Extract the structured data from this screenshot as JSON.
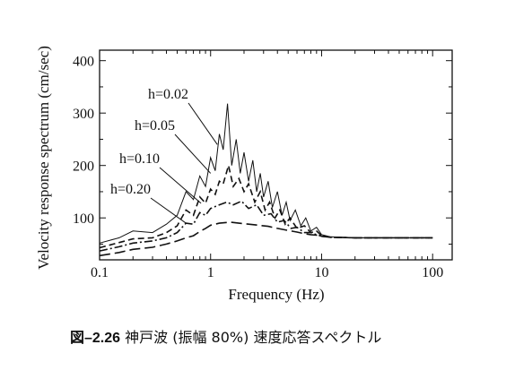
{
  "caption": {
    "number": "図–2.26",
    "text": "神戸波 (振幅 80%) 速度応答スペクトル"
  },
  "chart_data": {
    "type": "line",
    "title": "",
    "xlabel": "Frequency (Hz)",
    "ylabel": "Velocity response spectrum (cm/sec)",
    "xscale": "log",
    "xlim": [
      0.1,
      150
    ],
    "ylim": [
      20,
      420
    ],
    "xticks": [
      0.1,
      1,
      10,
      100
    ],
    "xtick_labels": [
      "0.1",
      "1",
      "10",
      "100"
    ],
    "yticks": [
      100,
      200,
      300,
      400
    ],
    "ytick_labels": [
      "100",
      "200",
      "300",
      "400"
    ],
    "grid": false,
    "legend": "none",
    "series": [
      {
        "name": "h=0.02",
        "dash": "solid",
        "points": [
          [
            0.1,
            52
          ],
          [
            0.15,
            62
          ],
          [
            0.2,
            75
          ],
          [
            0.3,
            72
          ],
          [
            0.4,
            88
          ],
          [
            0.5,
            105
          ],
          [
            0.6,
            150
          ],
          [
            0.7,
            135
          ],
          [
            0.8,
            180
          ],
          [
            0.9,
            160
          ],
          [
            1.0,
            215
          ],
          [
            1.1,
            190
          ],
          [
            1.2,
            260
          ],
          [
            1.3,
            230
          ],
          [
            1.42,
            318
          ],
          [
            1.55,
            200
          ],
          [
            1.7,
            250
          ],
          [
            1.85,
            185
          ],
          [
            2.0,
            225
          ],
          [
            2.2,
            170
          ],
          [
            2.4,
            210
          ],
          [
            2.6,
            150
          ],
          [
            2.8,
            185
          ],
          [
            3.0,
            140
          ],
          [
            3.3,
            170
          ],
          [
            3.6,
            120
          ],
          [
            4.0,
            150
          ],
          [
            4.4,
            105
          ],
          [
            4.8,
            130
          ],
          [
            5.2,
            95
          ],
          [
            5.8,
            115
          ],
          [
            6.5,
            85
          ],
          [
            7.2,
            100
          ],
          [
            8.0,
            75
          ],
          [
            9.0,
            82
          ],
          [
            10,
            68
          ],
          [
            12,
            64
          ],
          [
            20,
            62
          ],
          [
            50,
            62
          ],
          [
            100,
            62
          ]
        ]
      },
      {
        "name": "h=0.05",
        "dash": "dashed",
        "points": [
          [
            0.1,
            43
          ],
          [
            0.15,
            53
          ],
          [
            0.2,
            60
          ],
          [
            0.3,
            62
          ],
          [
            0.4,
            72
          ],
          [
            0.5,
            85
          ],
          [
            0.6,
            115
          ],
          [
            0.7,
            105
          ],
          [
            0.8,
            140
          ],
          [
            0.9,
            128
          ],
          [
            1.0,
            155
          ],
          [
            1.1,
            145
          ],
          [
            1.2,
            170
          ],
          [
            1.3,
            165
          ],
          [
            1.45,
            200
          ],
          [
            1.6,
            160
          ],
          [
            1.8,
            175
          ],
          [
            2.0,
            150
          ],
          [
            2.2,
            165
          ],
          [
            2.5,
            130
          ],
          [
            2.8,
            150
          ],
          [
            3.1,
            115
          ],
          [
            3.4,
            130
          ],
          [
            3.8,
            100
          ],
          [
            4.2,
            115
          ],
          [
            4.7,
            88
          ],
          [
            5.2,
            100
          ],
          [
            6.0,
            80
          ],
          [
            7.0,
            85
          ],
          [
            8.0,
            72
          ],
          [
            9.0,
            75
          ],
          [
            10,
            66
          ],
          [
            12,
            63
          ],
          [
            20,
            62
          ],
          [
            50,
            62
          ],
          [
            100,
            62
          ]
        ]
      },
      {
        "name": "h=0.10",
        "dash": "dashdot",
        "points": [
          [
            0.1,
            37
          ],
          [
            0.15,
            45
          ],
          [
            0.2,
            52
          ],
          [
            0.3,
            56
          ],
          [
            0.4,
            62
          ],
          [
            0.5,
            72
          ],
          [
            0.6,
            90
          ],
          [
            0.7,
            88
          ],
          [
            0.8,
            110
          ],
          [
            0.9,
            105
          ],
          [
            1.0,
            118
          ],
          [
            1.2,
            125
          ],
          [
            1.4,
            130
          ],
          [
            1.6,
            125
          ],
          [
            1.9,
            132
          ],
          [
            2.2,
            118
          ],
          [
            2.6,
            125
          ],
          [
            3.0,
            105
          ],
          [
            3.5,
            108
          ],
          [
            4.0,
            92
          ],
          [
            4.6,
            95
          ],
          [
            5.3,
            80
          ],
          [
            6.0,
            82
          ],
          [
            7.0,
            72
          ],
          [
            8.0,
            72
          ],
          [
            9.0,
            68
          ],
          [
            10,
            65
          ],
          [
            12,
            63
          ],
          [
            20,
            62
          ],
          [
            50,
            62
          ],
          [
            100,
            62
          ]
        ]
      },
      {
        "name": "h=0.20",
        "dash": "longdash",
        "points": [
          [
            0.1,
            28
          ],
          [
            0.15,
            34
          ],
          [
            0.2,
            40
          ],
          [
            0.3,
            44
          ],
          [
            0.4,
            50
          ],
          [
            0.5,
            56
          ],
          [
            0.6,
            62
          ],
          [
            0.7,
            66
          ],
          [
            0.8,
            74
          ],
          [
            0.9,
            80
          ],
          [
            1.0,
            86
          ],
          [
            1.2,
            90
          ],
          [
            1.5,
            92
          ],
          [
            1.8,
            90
          ],
          [
            2.2,
            88
          ],
          [
            2.7,
            86
          ],
          [
            3.3,
            84
          ],
          [
            4.0,
            80
          ],
          [
            5.0,
            76
          ],
          [
            6.0,
            73
          ],
          [
            7.0,
            70
          ],
          [
            8.0,
            68
          ],
          [
            9.0,
            67
          ],
          [
            10,
            65
          ],
          [
            12,
            63
          ],
          [
            20,
            62
          ],
          [
            50,
            62
          ],
          [
            100,
            62
          ]
        ]
      }
    ],
    "annotations": [
      {
        "text": "h=0.02",
        "series": "h=0.02",
        "arrow_to": [
          1.15,
          240
        ]
      },
      {
        "text": "h=0.05",
        "series": "h=0.05",
        "arrow_to": [
          1.0,
          185
        ]
      },
      {
        "text": "h=0.10",
        "series": "h=0.10",
        "arrow_to": [
          0.82,
          128
        ]
      },
      {
        "text": "h=0.20",
        "series": "h=0.20",
        "arrow_to": [
          0.6,
          90
        ]
      }
    ]
  }
}
